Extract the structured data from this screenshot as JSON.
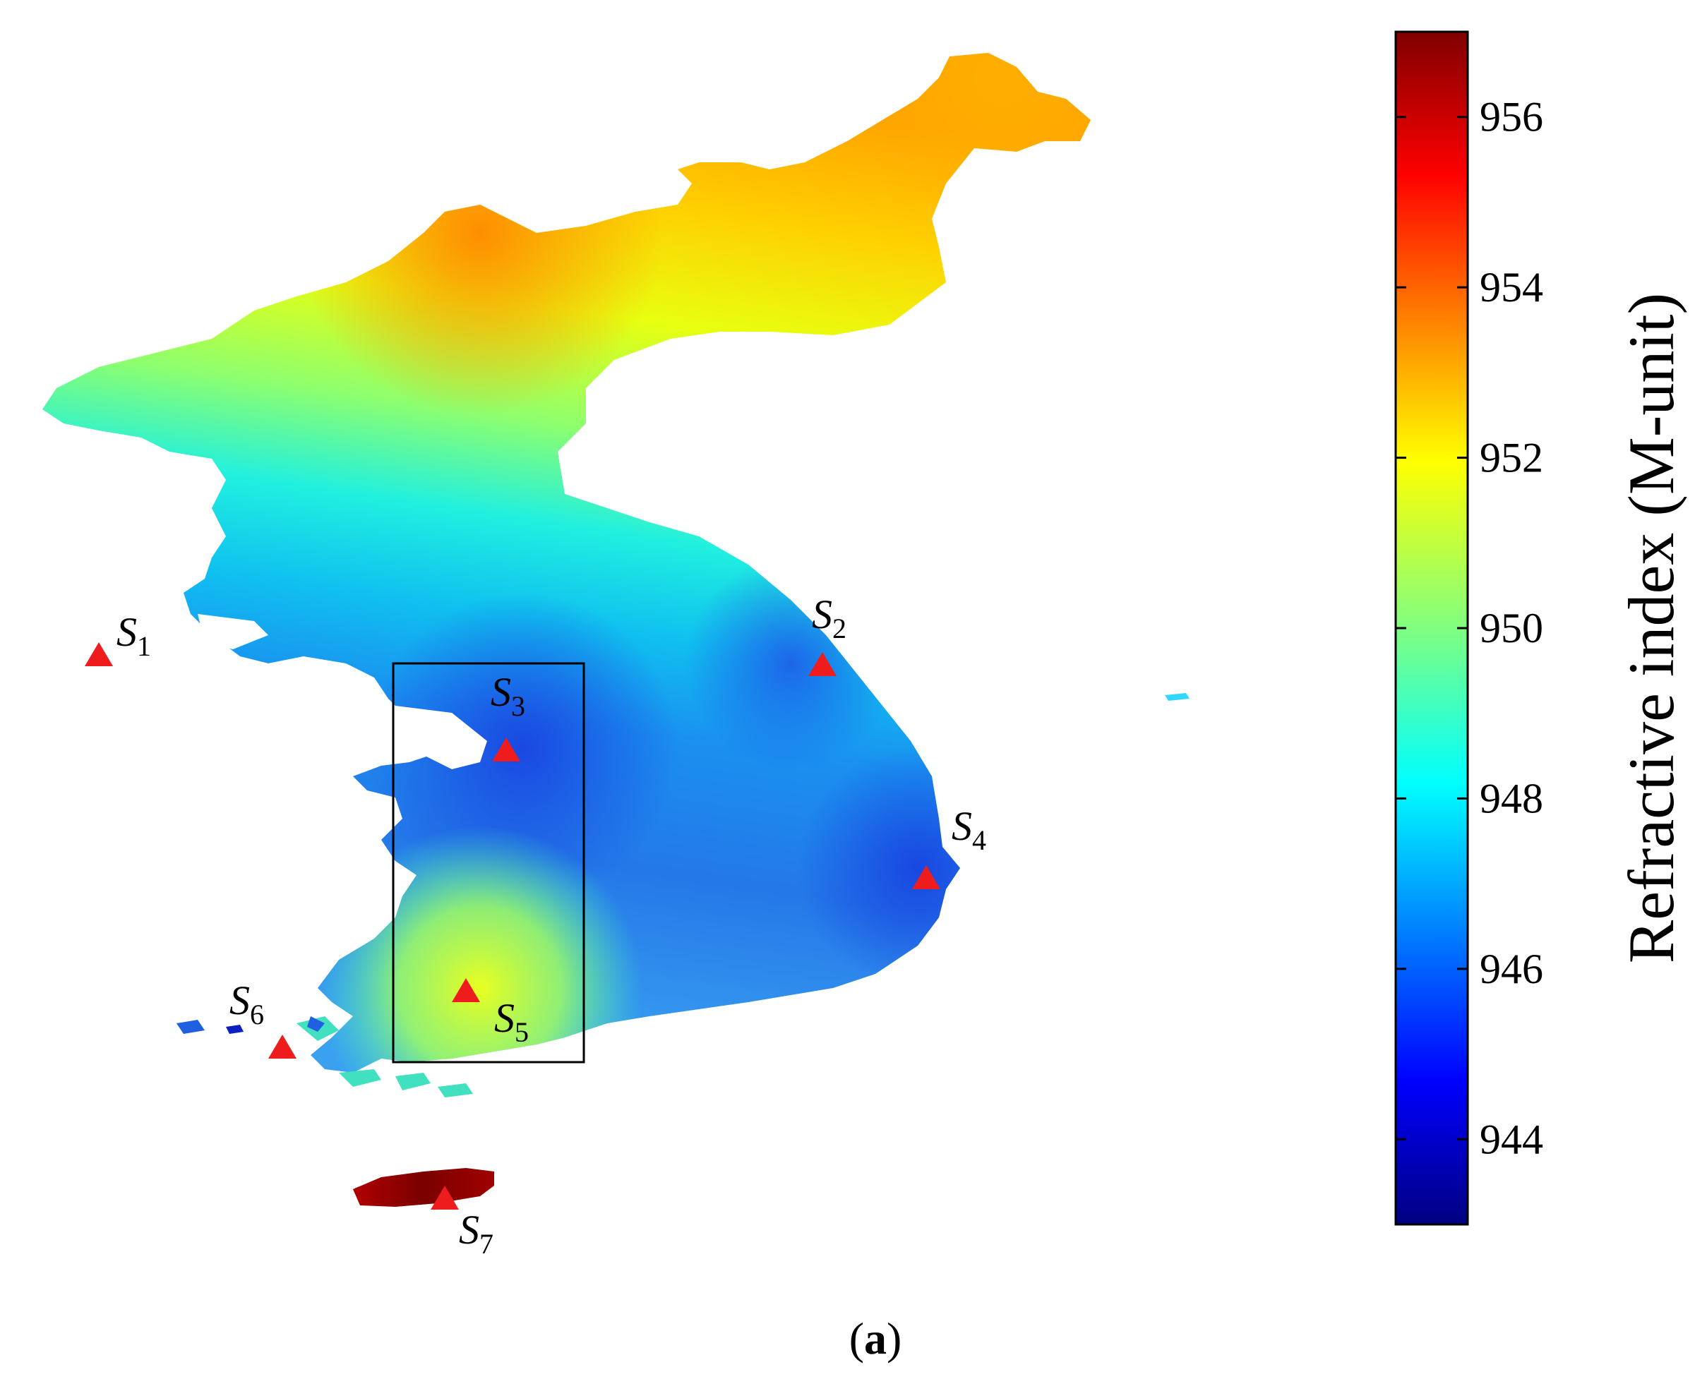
{
  "figure": {
    "panel_label": "a",
    "colorbar": {
      "title": "Refractive index (M-unit)",
      "min": 943,
      "max": 957,
      "ticks": [
        944,
        946,
        948,
        950,
        952,
        954,
        956
      ],
      "colormap": "jet"
    },
    "sites": [
      {
        "id": "S1",
        "letter": "S",
        "sub": "1",
        "value": 948.2
      },
      {
        "id": "S2",
        "letter": "S",
        "sub": "2",
        "value": 946.3
      },
      {
        "id": "S3",
        "letter": "S",
        "sub": "3",
        "value": 945.9
      },
      {
        "id": "S4",
        "letter": "S",
        "sub": "4",
        "value": 946.2
      },
      {
        "id": "S5",
        "letter": "S",
        "sub": "5",
        "value": 951.0
      },
      {
        "id": "S6",
        "letter": "S",
        "sub": "6",
        "value": 944.8
      },
      {
        "id": "S7",
        "letter": "S",
        "sub": "7",
        "value": 956.5
      }
    ],
    "colors": {
      "marker": "#ee1c1c",
      "study_box": "#000000"
    }
  }
}
